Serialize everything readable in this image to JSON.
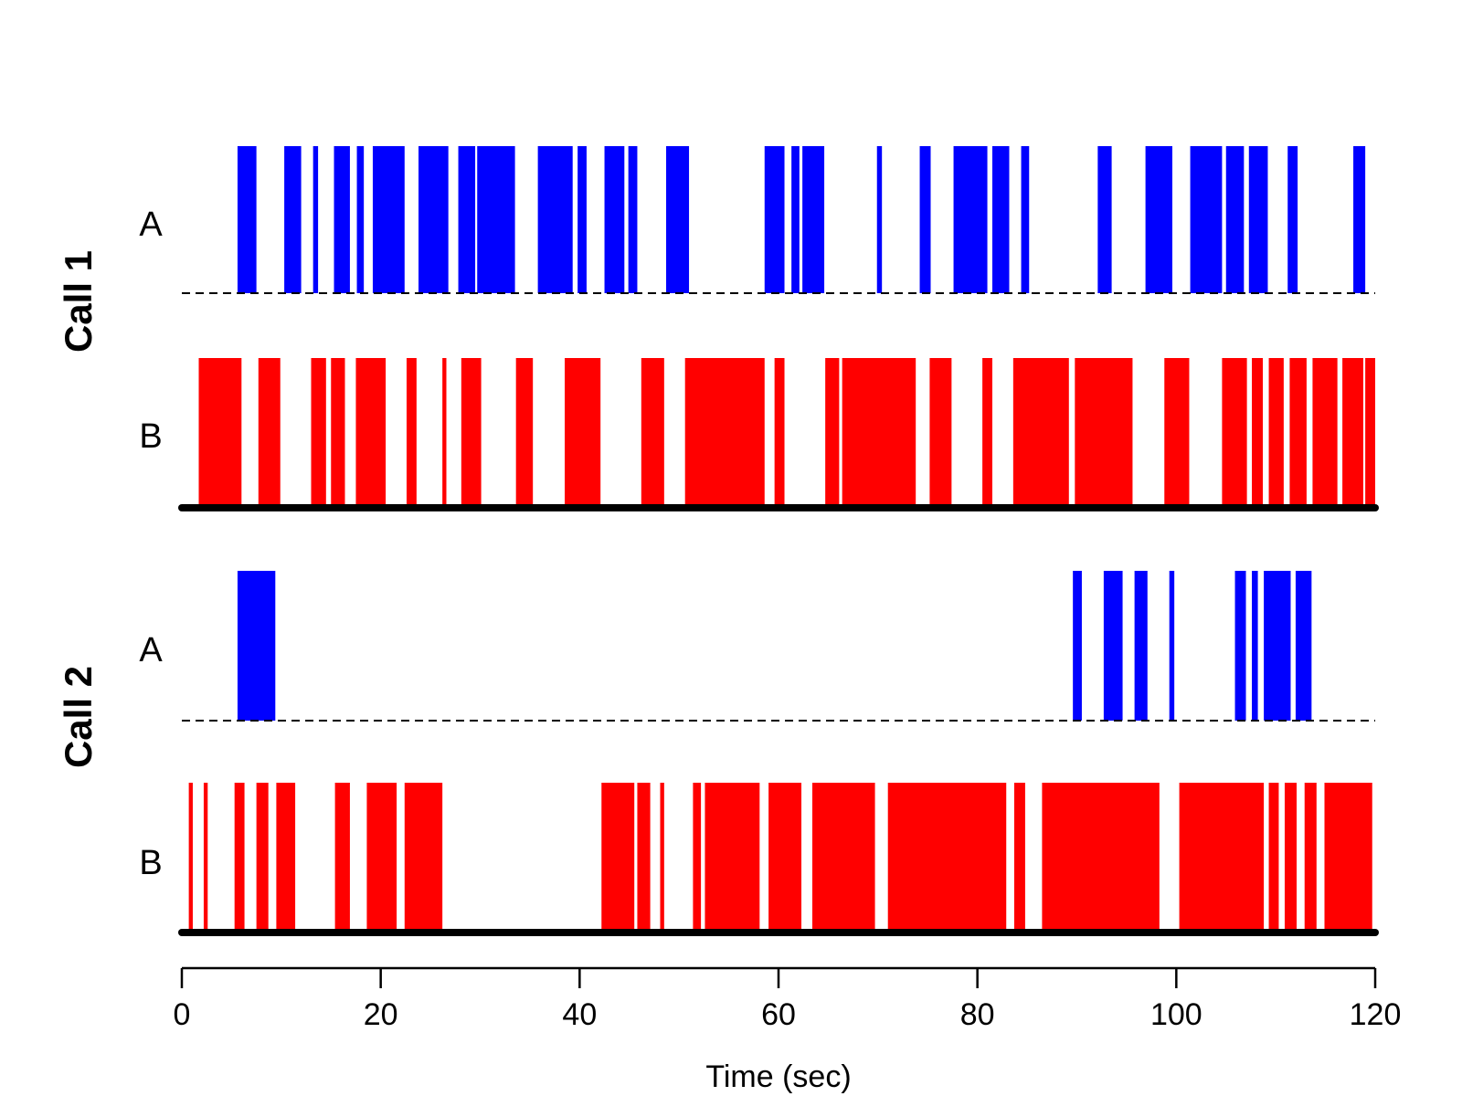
{
  "chart_data": {
    "type": "bar",
    "xlabel": "Time (sec)",
    "xlim": [
      0,
      120
    ],
    "xticks": [
      0,
      20,
      40,
      60,
      80,
      100,
      120
    ],
    "xtick_labels": [
      "0",
      "20",
      "40",
      "60",
      "80",
      "100",
      "120"
    ],
    "colors": {
      "A": "#0000ff",
      "B": "#ff0000"
    },
    "panels": [
      {
        "label": "Call 1",
        "tracks": [
          {
            "name": "A",
            "intervals": [
              [
                5.6,
                7.5
              ],
              [
                10.3,
                12
              ],
              [
                13.2,
                13.7
              ],
              [
                15.3,
                16.9
              ],
              [
                17.6,
                18.3
              ],
              [
                19.2,
                22.4
              ],
              [
                23.8,
                26.8
              ],
              [
                27.8,
                29.5
              ],
              [
                29.7,
                33.5
              ],
              [
                35.8,
                39.3
              ],
              [
                39.8,
                40.7
              ],
              [
                42.5,
                44.5
              ],
              [
                44.9,
                45.8
              ],
              [
                48.7,
                51
              ],
              [
                58.6,
                60.6
              ],
              [
                61.3,
                62.1
              ],
              [
                62.4,
                64.6
              ],
              [
                69.9,
                70.4
              ],
              [
                74.2,
                75.3
              ],
              [
                77.6,
                81
              ],
              [
                81.5,
                83.2
              ],
              [
                84.4,
                85.2
              ],
              [
                92.1,
                93.5
              ],
              [
                96.9,
                99.6
              ],
              [
                101.4,
                104.6
              ],
              [
                105,
                106.8
              ],
              [
                107.3,
                109.2
              ],
              [
                111.2,
                112.2
              ],
              [
                117.8,
                119
              ]
            ]
          },
          {
            "name": "B",
            "intervals": [
              [
                1.7,
                6
              ],
              [
                7.7,
                9.9
              ],
              [
                13,
                14.5
              ],
              [
                15,
                16.4
              ],
              [
                17.5,
                20.5
              ],
              [
                22.6,
                23.6
              ],
              [
                26.2,
                26.6
              ],
              [
                28.1,
                30.1
              ],
              [
                33.6,
                35.3
              ],
              [
                38.5,
                42.1
              ],
              [
                46.2,
                48.5
              ],
              [
                50.6,
                58.6
              ],
              [
                59.6,
                60.6
              ],
              [
                64.7,
                66.1
              ],
              [
                66.4,
                73.8
              ],
              [
                75.2,
                77.4
              ],
              [
                80.5,
                81.5
              ],
              [
                83.6,
                89.2
              ],
              [
                89.8,
                95.6
              ],
              [
                98.8,
                101.3
              ],
              [
                104.6,
                107.1
              ],
              [
                107.6,
                108.7
              ],
              [
                109.3,
                110.8
              ],
              [
                111.4,
                113.1
              ],
              [
                113.7,
                116.2
              ],
              [
                116.7,
                118.8
              ],
              [
                119,
                120
              ]
            ]
          }
        ]
      },
      {
        "label": "Call 2",
        "tracks": [
          {
            "name": "A",
            "intervals": [
              [
                5.6,
                9.4
              ],
              [
                89.6,
                90.5
              ],
              [
                92.7,
                94.6
              ],
              [
                95.8,
                97.1
              ],
              [
                99.3,
                99.8
              ],
              [
                105.9,
                107
              ],
              [
                107.6,
                108.2
              ],
              [
                108.8,
                111.5
              ],
              [
                112,
                113.6
              ]
            ]
          },
          {
            "name": "B",
            "intervals": [
              [
                0.7,
                1.1
              ],
              [
                2.2,
                2.6
              ],
              [
                5.3,
                6.3
              ],
              [
                7.5,
                8.7
              ],
              [
                9.5,
                11.4
              ],
              [
                15.4,
                16.9
              ],
              [
                18.6,
                21.6
              ],
              [
                22.4,
                26.2
              ],
              [
                42.2,
                45.5
              ],
              [
                45.8,
                47.1
              ],
              [
                48.1,
                48.5
              ],
              [
                51.4,
                52.2
              ],
              [
                52.6,
                58.1
              ],
              [
                59,
                62.3
              ],
              [
                63.4,
                69.7
              ],
              [
                71,
                82.9
              ],
              [
                83.7,
                84.8
              ],
              [
                86.5,
                98.3
              ],
              [
                100.3,
                108.8
              ],
              [
                109.3,
                110.3
              ],
              [
                110.9,
                112.1
              ],
              [
                112.9,
                114.1
              ],
              [
                114.9,
                119.7
              ],
              [
                120.2,
                121
              ]
            ]
          }
        ]
      }
    ]
  }
}
